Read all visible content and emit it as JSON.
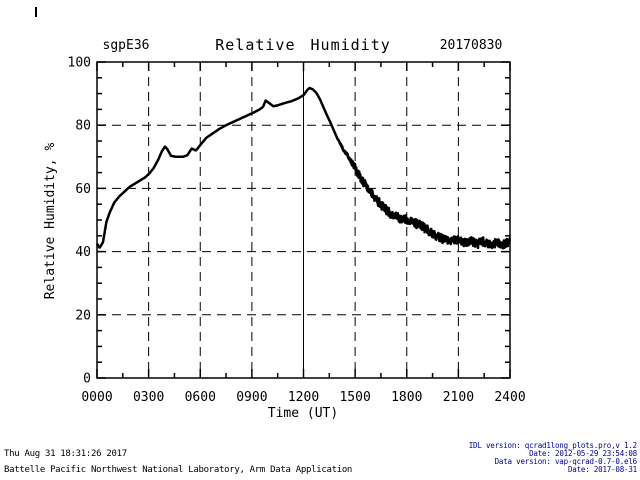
{
  "colors": {
    "foreground": "#000000",
    "background": "#ffffff",
    "footer_right_text": "#00008B"
  },
  "footer_left": {
    "line1": "Thu Aug 31 18:31:26 2017",
    "line2": "Battelle Pacific Northwest National Laboratory, Arm Data Application"
  },
  "footer_right": {
    "line1": "IDL version: qcrad1long_plots.pro,v 1.2",
    "line2": "Date: 2012-05-29 23:54:08",
    "line3": "Data version: vap-qcrad-0.7-0.el6",
    "line4": "Date: 2017-08-31"
  },
  "chart_data": {
    "type": "line",
    "station": "sgpE36",
    "title": "Relative Humidity",
    "date_label": "20170830",
    "xlabel": "Time (UT)",
    "ylabel": "Relative Humidity, %",
    "xlim": [
      0,
      24
    ],
    "ylim": [
      0,
      100
    ],
    "xticks": {
      "values": [
        0,
        3,
        6,
        9,
        12,
        15,
        18,
        21,
        24
      ],
      "labels": [
        "0000",
        "0300",
        "0600",
        "0900",
        "1200",
        "1500",
        "1800",
        "2100",
        "2400"
      ]
    },
    "yticks": {
      "values": [
        0,
        20,
        40,
        60,
        80,
        100
      ],
      "labels": [
        "0",
        "20",
        "40",
        "60",
        "80",
        "100"
      ]
    },
    "x_minor_step": 1.5,
    "y_minor_step": 5,
    "grid_style": "dashed",
    "solid_vline_x": 12,
    "legend": "none",
    "line_color": "#000000",
    "noise": {
      "start": 13.9,
      "ramp_per_hour": 1.1,
      "max_amplitude": 1.4
    },
    "series": [
      {
        "name": "relative_humidity_pct",
        "points": [
          [
            0,
            42.5
          ],
          [
            0.15,
            41.2
          ],
          [
            0.35,
            43
          ],
          [
            0.55,
            49.5
          ],
          [
            0.75,
            52.5
          ],
          [
            1.0,
            55.5
          ],
          [
            1.3,
            57.5
          ],
          [
            1.6,
            59
          ],
          [
            1.9,
            60.5
          ],
          [
            2.2,
            61.5
          ],
          [
            2.5,
            62.5
          ],
          [
            2.8,
            63.5
          ],
          [
            3.05,
            64.8
          ],
          [
            3.3,
            66.5
          ],
          [
            3.55,
            69
          ],
          [
            3.75,
            71.5
          ],
          [
            3.95,
            73.3
          ],
          [
            4.1,
            72.3
          ],
          [
            4.3,
            70.3
          ],
          [
            4.6,
            70
          ],
          [
            5.0,
            70
          ],
          [
            5.25,
            70.5
          ],
          [
            5.5,
            72.6
          ],
          [
            5.75,
            72
          ],
          [
            6.1,
            74.4
          ],
          [
            6.35,
            76
          ],
          [
            6.7,
            77.3
          ],
          [
            7.1,
            78.8
          ],
          [
            7.5,
            80
          ],
          [
            7.9,
            81
          ],
          [
            8.3,
            82
          ],
          [
            8.7,
            83
          ],
          [
            9.1,
            84
          ],
          [
            9.45,
            85
          ],
          [
            9.65,
            85.8
          ],
          [
            9.8,
            87.8
          ],
          [
            10.0,
            87
          ],
          [
            10.25,
            86
          ],
          [
            10.5,
            86.3
          ],
          [
            10.9,
            87
          ],
          [
            11.3,
            87.6
          ],
          [
            11.7,
            88.5
          ],
          [
            12.0,
            89.5
          ],
          [
            12.2,
            91
          ],
          [
            12.35,
            91.8
          ],
          [
            12.55,
            91.3
          ],
          [
            12.75,
            90.2
          ],
          [
            12.95,
            88.3
          ],
          [
            13.15,
            85.8
          ],
          [
            13.35,
            83.3
          ],
          [
            13.55,
            81
          ],
          [
            13.75,
            78.5
          ],
          [
            13.95,
            76
          ],
          [
            14.15,
            74
          ],
          [
            14.35,
            72
          ],
          [
            14.65,
            69.5
          ],
          [
            14.95,
            67
          ],
          [
            15.15,
            64.8
          ],
          [
            15.45,
            62
          ],
          [
            15.75,
            60
          ],
          [
            16.05,
            57.8
          ],
          [
            16.35,
            55.8
          ],
          [
            16.65,
            54
          ],
          [
            17.0,
            52.3
          ],
          [
            17.4,
            51
          ],
          [
            17.8,
            50.3
          ],
          [
            18.2,
            50
          ],
          [
            18.5,
            49
          ],
          [
            18.9,
            48
          ],
          [
            19.3,
            46.5
          ],
          [
            19.7,
            45
          ],
          [
            20.1,
            44
          ],
          [
            20.5,
            43.3
          ],
          [
            20.9,
            43.8
          ],
          [
            21.3,
            42.8
          ],
          [
            21.7,
            43.5
          ],
          [
            22.1,
            42.5
          ],
          [
            22.5,
            43.2
          ],
          [
            22.9,
            41.8
          ],
          [
            23.3,
            43
          ],
          [
            23.6,
            42
          ],
          [
            23.85,
            43
          ],
          [
            24,
            43.8
          ]
        ]
      }
    ]
  }
}
